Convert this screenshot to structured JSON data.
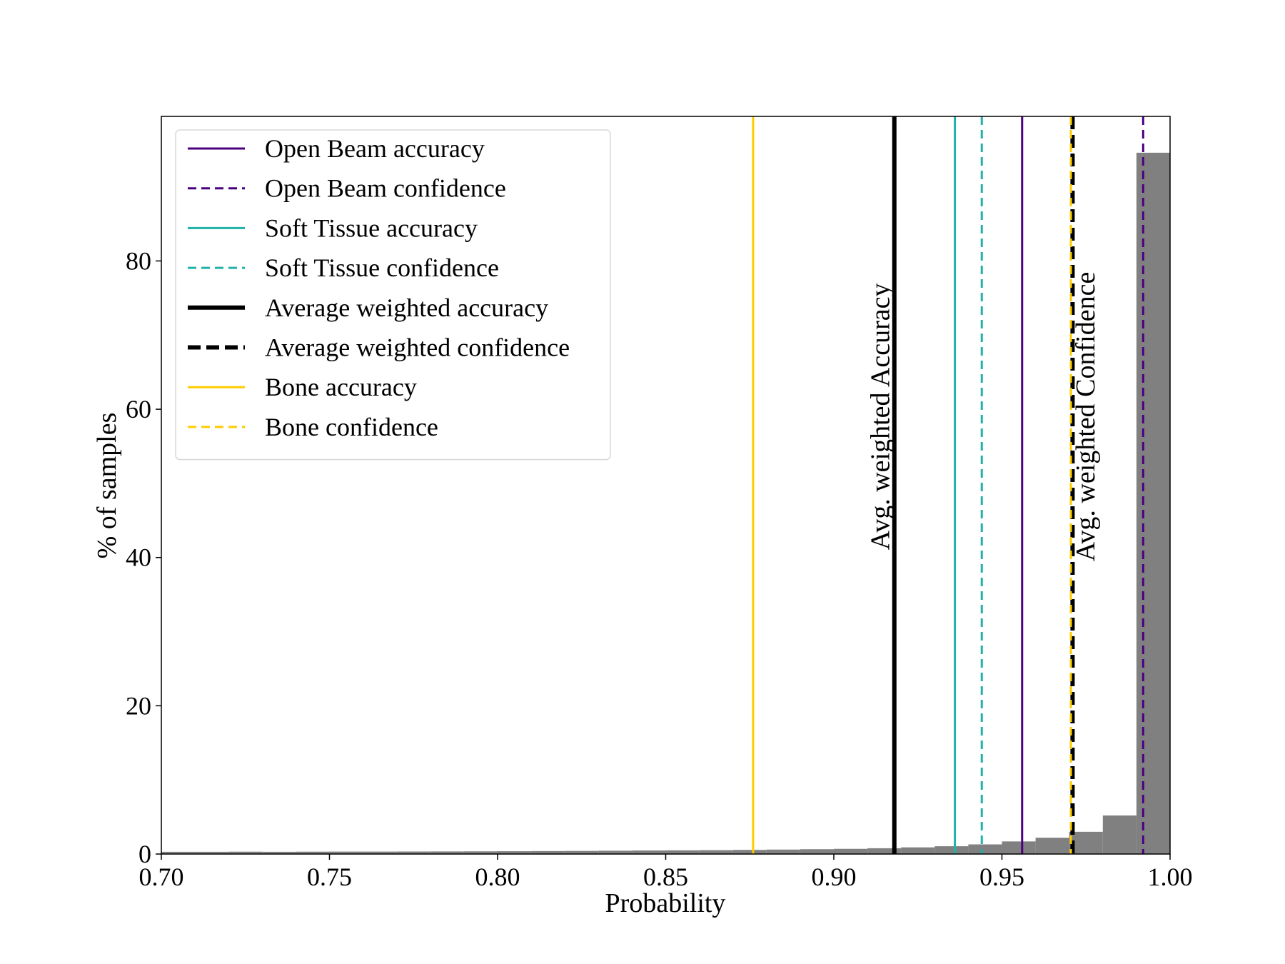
{
  "chart_data": {
    "type": "bar",
    "title": "",
    "xlabel": "Probability",
    "ylabel": "% of samples",
    "xlim": [
      0.7,
      1.0
    ],
    "ylim": [
      0,
      99.5
    ],
    "xticks": [
      0.7,
      0.75,
      0.8,
      0.85,
      0.9,
      0.95,
      1.0
    ],
    "xtick_labels": [
      "0.70",
      "0.75",
      "0.80",
      "0.85",
      "0.90",
      "0.95",
      "1.00"
    ],
    "yticks": [
      0,
      20,
      40,
      60,
      80
    ],
    "ytick_labels": [
      "0",
      "20",
      "40",
      "60",
      "80"
    ],
    "grid": false,
    "histogram": {
      "color": "#808080",
      "bins": [
        {
          "x0": 0.7,
          "x1": 0.71,
          "value": 0.3
        },
        {
          "x0": 0.71,
          "x1": 0.72,
          "value": 0.3
        },
        {
          "x0": 0.72,
          "x1": 0.73,
          "value": 0.32
        },
        {
          "x0": 0.73,
          "x1": 0.74,
          "value": 0.3
        },
        {
          "x0": 0.74,
          "x1": 0.75,
          "value": 0.32
        },
        {
          "x0": 0.75,
          "x1": 0.76,
          "value": 0.33
        },
        {
          "x0": 0.76,
          "x1": 0.77,
          "value": 0.33
        },
        {
          "x0": 0.77,
          "x1": 0.78,
          "value": 0.34
        },
        {
          "x0": 0.78,
          "x1": 0.79,
          "value": 0.35
        },
        {
          "x0": 0.79,
          "x1": 0.8,
          "value": 0.36
        },
        {
          "x0": 0.8,
          "x1": 0.81,
          "value": 0.38
        },
        {
          "x0": 0.81,
          "x1": 0.82,
          "value": 0.4
        },
        {
          "x0": 0.82,
          "x1": 0.83,
          "value": 0.42
        },
        {
          "x0": 0.83,
          "x1": 0.84,
          "value": 0.45
        },
        {
          "x0": 0.84,
          "x1": 0.85,
          "value": 0.48
        },
        {
          "x0": 0.85,
          "x1": 0.86,
          "value": 0.5
        },
        {
          "x0": 0.86,
          "x1": 0.87,
          "value": 0.52
        },
        {
          "x0": 0.87,
          "x1": 0.88,
          "value": 0.56
        },
        {
          "x0": 0.88,
          "x1": 0.89,
          "value": 0.6
        },
        {
          "x0": 0.89,
          "x1": 0.9,
          "value": 0.65
        },
        {
          "x0": 0.9,
          "x1": 0.91,
          "value": 0.7
        },
        {
          "x0": 0.91,
          "x1": 0.92,
          "value": 0.78
        },
        {
          "x0": 0.92,
          "x1": 0.93,
          "value": 0.9
        },
        {
          "x0": 0.93,
          "x1": 0.94,
          "value": 1.05
        },
        {
          "x0": 0.94,
          "x1": 0.95,
          "value": 1.3
        },
        {
          "x0": 0.95,
          "x1": 0.96,
          "value": 1.7
        },
        {
          "x0": 0.96,
          "x1": 0.97,
          "value": 2.2
        },
        {
          "x0": 0.97,
          "x1": 0.98,
          "value": 3.0
        },
        {
          "x0": 0.98,
          "x1": 0.99,
          "value": 5.2
        },
        {
          "x0": 0.99,
          "x1": 1.0,
          "value": 94.6
        }
      ]
    },
    "vlines": [
      {
        "name": "Bone accuracy",
        "x": 0.876,
        "color": "#FFCC00",
        "style": "solid",
        "width": 3
      },
      {
        "name": "Average weighted accuracy",
        "x": 0.918,
        "color": "#000000",
        "style": "solid",
        "width": 6
      },
      {
        "name": "Soft Tissue accuracy",
        "x": 0.936,
        "color": "#20B2AA",
        "style": "solid",
        "width": 3
      },
      {
        "name": "Soft Tissue confidence",
        "x": 0.944,
        "color": "#20B2AA",
        "style": "dashed",
        "width": 3
      },
      {
        "name": "Open Beam accuracy",
        "x": 0.956,
        "color": "#4B0082",
        "style": "solid",
        "width": 3
      },
      {
        "name": "Average weighted confidence",
        "x": 0.971,
        "color": "#000000",
        "style": "dashed-heavy",
        "width": 6
      },
      {
        "name": "Bone confidence",
        "x": 0.9705,
        "color": "#FFCC00",
        "style": "dashed",
        "width": 3
      },
      {
        "name": "Open Beam confidence",
        "x": 0.992,
        "color": "#4B0082",
        "style": "dashed",
        "width": 3
      }
    ],
    "annotations": [
      {
        "text": "Avg. weighted Accuracy",
        "x": 0.9165,
        "y": 59,
        "rotation": -90
      },
      {
        "text": "Avg. weighted Confidence",
        "x": 0.9775,
        "y": 59,
        "rotation": -90
      }
    ],
    "legend": {
      "position": "top-left",
      "entries": [
        {
          "label": "Open Beam accuracy",
          "color": "#4B0082",
          "style": "solid"
        },
        {
          "label": "Open Beam confidence",
          "color": "#4B0082",
          "style": "dashed"
        },
        {
          "label": "Soft Tissue accuracy",
          "color": "#20B2AA",
          "style": "solid"
        },
        {
          "label": "Soft Tissue confidence",
          "color": "#20B2AA",
          "style": "dashed"
        },
        {
          "label": "Average weighted accuracy",
          "color": "#000000",
          "style": "solid-heavy"
        },
        {
          "label": "Average weighted confidence",
          "color": "#000000",
          "style": "dashed-heavy"
        },
        {
          "label": "Bone accuracy",
          "color": "#FFCC00",
          "style": "solid"
        },
        {
          "label": "Bone confidence",
          "color": "#FFCC00",
          "style": "dashed"
        }
      ]
    }
  }
}
